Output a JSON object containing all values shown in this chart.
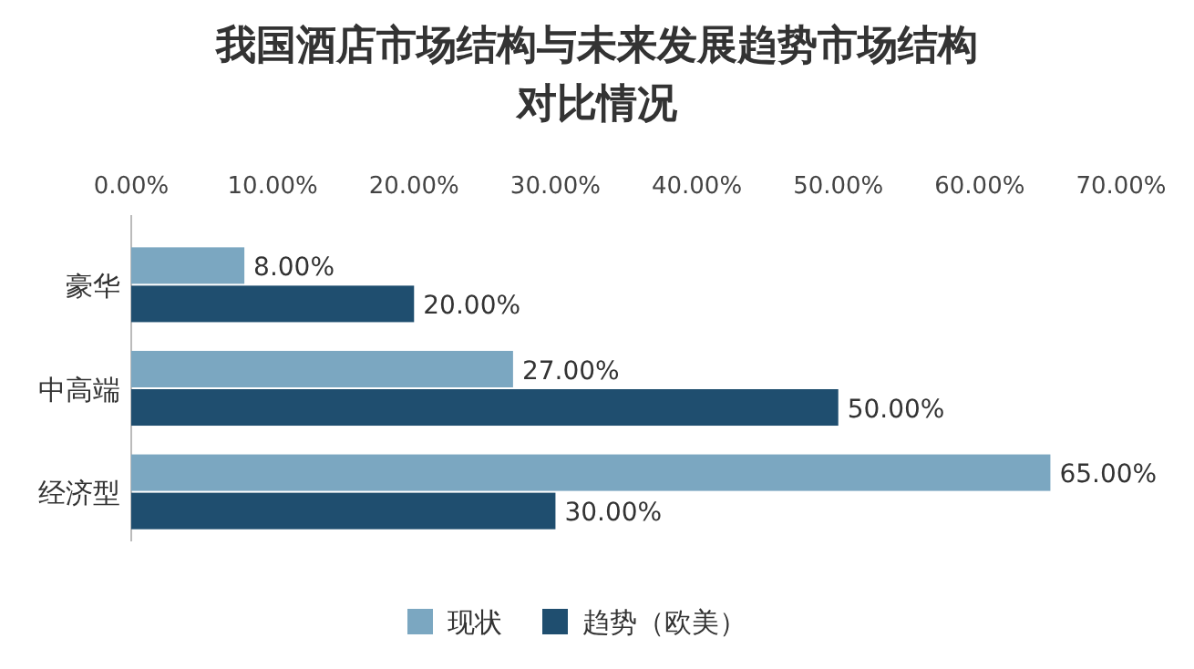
{
  "chart_data": {
    "type": "bar",
    "orientation": "horizontal",
    "title": "我国酒店市场结构与未来发展趋势市场结构对比情况",
    "categories": [
      "豪华",
      "中高端",
      "经济型"
    ],
    "series": [
      {
        "name": "现状",
        "color": "#7ba7c1",
        "values": [
          8,
          27,
          65
        ],
        "value_labels": [
          "8.00%",
          "27.00%",
          "65.00%"
        ]
      },
      {
        "name": "趋势（欧美）",
        "color": "#1f4e6f",
        "values": [
          20,
          50,
          30
        ],
        "value_labels": [
          "20.00%",
          "50.00%",
          "30.00%"
        ]
      }
    ],
    "xlim": [
      0,
      70
    ],
    "xticks": [
      {
        "value": 0,
        "label": "0.00%"
      },
      {
        "value": 10,
        "label": "10.00%"
      },
      {
        "value": 20,
        "label": "20.00%"
      },
      {
        "value": 30,
        "label": "30.00%"
      },
      {
        "value": 40,
        "label": "40.00%"
      },
      {
        "value": 50,
        "label": "50.00%"
      },
      {
        "value": 60,
        "label": "60.00%"
      },
      {
        "value": 70,
        "label": "70.00%"
      }
    ],
    "grid": false,
    "legend": "bottom"
  }
}
